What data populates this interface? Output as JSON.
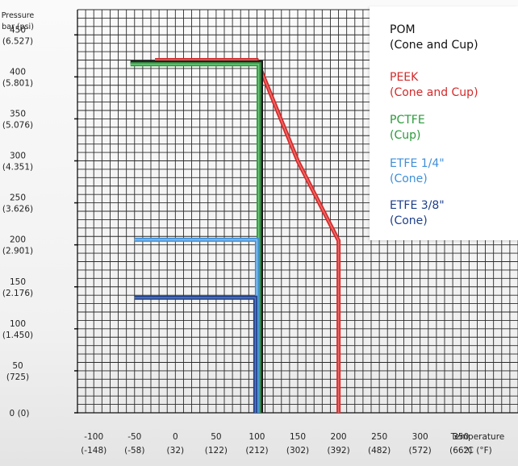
{
  "chart_data": {
    "type": "line",
    "ylabel_lines": [
      "Pressure",
      "bar (psi)"
    ],
    "xlabel_lines": [
      "Temperature",
      "°C (°F)"
    ],
    "xlim": [
      -120,
      420
    ],
    "ylim": [
      0,
      480
    ],
    "x_ticks": [
      {
        "value": -100,
        "line1": "-100",
        "line2": "(-148)"
      },
      {
        "value": -50,
        "line1": "-50",
        "line2": "(-58)"
      },
      {
        "value": 0,
        "line1": "0",
        "line2": "(32)"
      },
      {
        "value": 50,
        "line1": "50",
        "line2": "(122)"
      },
      {
        "value": 100,
        "line1": "100",
        "line2": "(212)"
      },
      {
        "value": 150,
        "line1": "150",
        "line2": "(302)"
      },
      {
        "value": 200,
        "line1": "200",
        "line2": "(392)"
      },
      {
        "value": 250,
        "line1": "250",
        "line2": "(482)"
      },
      {
        "value": 300,
        "line1": "300",
        "line2": "(572)"
      },
      {
        "value": 350,
        "line1": "350",
        "line2": "(662)"
      }
    ],
    "y_ticks": [
      {
        "value": 0,
        "line1": "0 (0)",
        "line2": ""
      },
      {
        "value": 50,
        "line1": "50",
        "line2": "(725)"
      },
      {
        "value": 100,
        "line1": "100",
        "line2": "(1.450)"
      },
      {
        "value": 150,
        "line1": "150",
        "line2": "(2.176)"
      },
      {
        "value": 200,
        "line1": "200",
        "line2": "(2.901)"
      },
      {
        "value": 250,
        "line1": "250",
        "line2": "(3.626)"
      },
      {
        "value": 300,
        "line1": "300",
        "line2": "(4.351)"
      },
      {
        "value": 350,
        "line1": "350",
        "line2": "(5.076)"
      },
      {
        "value": 400,
        "line1": "400",
        "line2": "(5.801)"
      },
      {
        "value": 450,
        "line1": "450",
        "line2": "(6.527)"
      }
    ],
    "grid": true,
    "legend_position": "top-right",
    "series": [
      {
        "key": "peek",
        "color": "#d42a2a",
        "fill": "#ef6a6a",
        "x": [
          -25,
          100,
          150,
          200,
          200
        ],
        "y": [
          420,
          420,
          300,
          205,
          0
        ]
      },
      {
        "key": "pom",
        "color": "#111111",
        "fill": "#555555",
        "x": [
          -55,
          105,
          105
        ],
        "y": [
          417,
          417,
          0
        ]
      },
      {
        "key": "pctfe",
        "color": "#2a9a3a",
        "fill": "#6cc87a",
        "x": [
          -55,
          102,
          102
        ],
        "y": [
          415,
          415,
          0
        ]
      },
      {
        "key": "etfe14",
        "color": "#3f8fd9",
        "fill": "#8cc2f0",
        "x": [
          -50,
          100,
          100
        ],
        "y": [
          206,
          206,
          0
        ]
      },
      {
        "key": "etfe38",
        "color": "#1e3f8a",
        "fill": "#5877c0",
        "x": [
          -50,
          98,
          98
        ],
        "y": [
          137,
          137,
          0
        ]
      }
    ]
  },
  "legend": [
    {
      "key": "pom",
      "line1": "POM",
      "line2": "(Cone and Cup)",
      "color": "#111111"
    },
    {
      "key": "peek",
      "line1": "PEEK",
      "line2": "(Cone and Cup)",
      "color": "#d42a2a"
    },
    {
      "key": "pctfe",
      "line1": "PCTFE",
      "line2": "(Cup)",
      "color": "#2a9a3a"
    },
    {
      "key": "etfe14",
      "line1": "ETFE 1/4\"",
      "line2": "(Cone)",
      "color": "#3f8fd9"
    },
    {
      "key": "etfe38",
      "line1": "ETFE 3/8\"",
      "line2": "(Cone)",
      "color": "#1e3f8a"
    }
  ]
}
